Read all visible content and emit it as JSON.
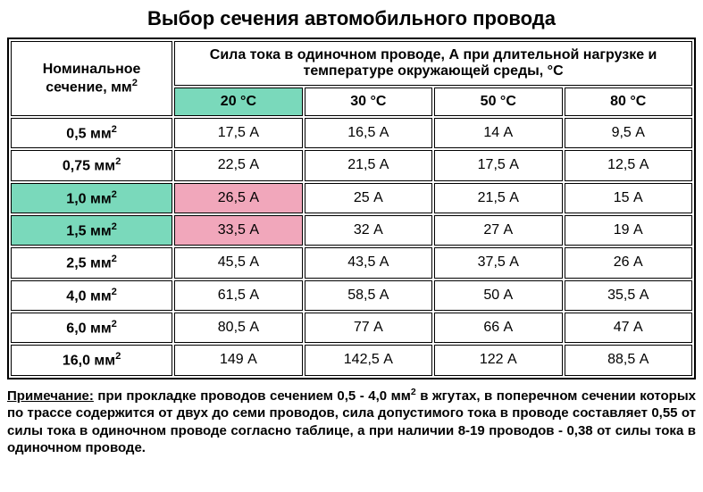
{
  "title": "Выбор сечения автомобильного провода",
  "table": {
    "type": "table",
    "section_header_html": "Номинальное сечение, мм<sup>2</sup>",
    "top_header": "Сила тока в одиночном проводе, А  при длительной нагрузке и температуре окружающей среды, °С",
    "temp_columns": [
      "20 °С",
      "30 °С",
      "50 °С",
      "80 °С"
    ],
    "rows": [
      {
        "section_html": "0,5 мм<sup>2</sup>",
        "values": [
          "17,5 А",
          "16,5 А",
          "14 А",
          "9,5 А"
        ]
      },
      {
        "section_html": "0,75 мм<sup>2</sup>",
        "values": [
          "22,5 А",
          "21,5 А",
          "17,5 А",
          "12,5 А"
        ]
      },
      {
        "section_html": "1,0 мм<sup>2</sup>",
        "values": [
          "26,5 А",
          "25 А",
          "21,5 А",
          "15 А"
        ]
      },
      {
        "section_html": "1,5 мм<sup>2</sup>",
        "values": [
          "33,5 А",
          "32 А",
          "27 А",
          "19 А"
        ]
      },
      {
        "section_html": "2,5 мм<sup>2</sup>",
        "values": [
          "45,5 А",
          "43,5 А",
          "37,5 А",
          "26 А"
        ]
      },
      {
        "section_html": "4,0 мм<sup>2</sup>",
        "values": [
          "61,5 А",
          "58,5 А",
          "50 А",
          "35,5 А"
        ]
      },
      {
        "section_html": "6,0 мм<sup>2</sup>",
        "values": [
          "80,5 А",
          "77 А",
          "66 А",
          "47 А"
        ]
      },
      {
        "section_html": "16,0 мм<sup>2</sup>",
        "values": [
          "149 А",
          "142,5 А",
          "122 А",
          "88,5 А"
        ]
      }
    ],
    "highlight_teal": "#7ad9bb",
    "highlight_pink": "#f1a7bb",
    "highlight_cells": {
      "temp_header": [
        0
      ],
      "section_rows": [
        2,
        3
      ],
      "value_cells": [
        [
          2,
          0
        ],
        [
          3,
          0
        ]
      ]
    },
    "border_color": "#000000",
    "background": "#ffffff",
    "font_size_header": 16,
    "font_size_cell": 16,
    "col_widths_pct": [
      24,
      19,
      19,
      19,
      19
    ]
  },
  "note": {
    "label": "Примечание:",
    "text_html": " при прокладке проводов сечением 0,5 - 4,0 мм<sup>2</sup> в жгутах, в поперечном сечении которых по трассе содержится от двух до семи проводов, сила допустимого тока в проводе составляет 0,55 от силы тока в одиночном проводе согласно таблице, а при наличии 8-19 проводов - 0,38 от силы тока в одиночном проводе."
  }
}
